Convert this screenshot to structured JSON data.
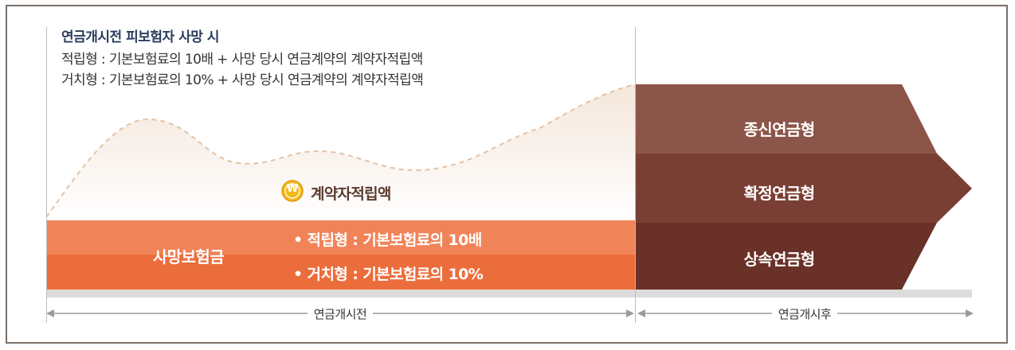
{
  "notes": {
    "heading": "연금개시전 피보험자 사망 시",
    "line1": "적립형 : 기본보험료의 10배 + 사망 당시 연금계약의 계약자적립액",
    "line2": "거치형 : 기본보험료의 10% + 사망 당시 연금계약의 계약자적립액"
  },
  "curve_label": "계약자적립액",
  "coin_symbol": "₩",
  "death_benefit": {
    "label": "사망보험금",
    "bullet1": "• 적립형 : 기본보험료의 10배",
    "bullet2": "• 거치형 : 기본보험료의 10%"
  },
  "annuity_types": [
    "종신연금형",
    "확정연금형",
    "상속연금형"
  ],
  "timeline": {
    "before": "연금개시전",
    "after": "연금개시후"
  },
  "colors": {
    "band_top": "#f08458",
    "band_bottom": "#ec6d3c",
    "arrow_top": "#8c5549",
    "arrow_mid": "#7a3f34",
    "arrow_bottom": "#6a3128",
    "heading": "#2a3d5c",
    "coin": "#f2b91b"
  }
}
